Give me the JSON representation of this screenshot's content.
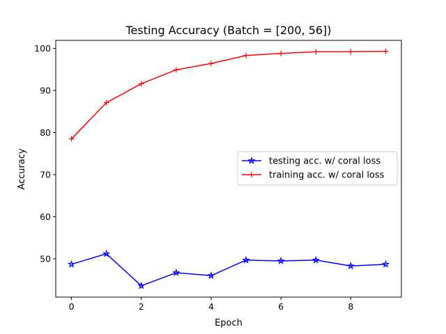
{
  "chart_data": {
    "type": "line",
    "title": "Testing Accuracy (Batch = [200, 56])",
    "xlabel": "Epoch",
    "ylabel": "Accuracy",
    "xlim": [
      -0.45,
      9.45
    ],
    "ylim": [
      40.9,
      101.9
    ],
    "xticks": [
      0,
      2,
      4,
      6,
      8
    ],
    "yticks": [
      50,
      60,
      70,
      80,
      90,
      100
    ],
    "grid": false,
    "legend_position": "center-right",
    "x": [
      0,
      1,
      2,
      3,
      4,
      5,
      6,
      7,
      8,
      9
    ],
    "series": [
      {
        "name": "testing acc. w/ coral loss",
        "color": "#0000ff",
        "marker": "star",
        "values": [
          48.7,
          51.2,
          43.6,
          46.7,
          46.0,
          49.7,
          49.5,
          49.7,
          48.3,
          48.7
        ]
      },
      {
        "name": "training acc. w/ coral loss",
        "color": "#ff0000",
        "marker": "plus",
        "values": [
          78.5,
          87.1,
          91.6,
          94.9,
          96.4,
          98.3,
          98.8,
          99.2,
          99.2,
          99.3
        ]
      }
    ]
  }
}
